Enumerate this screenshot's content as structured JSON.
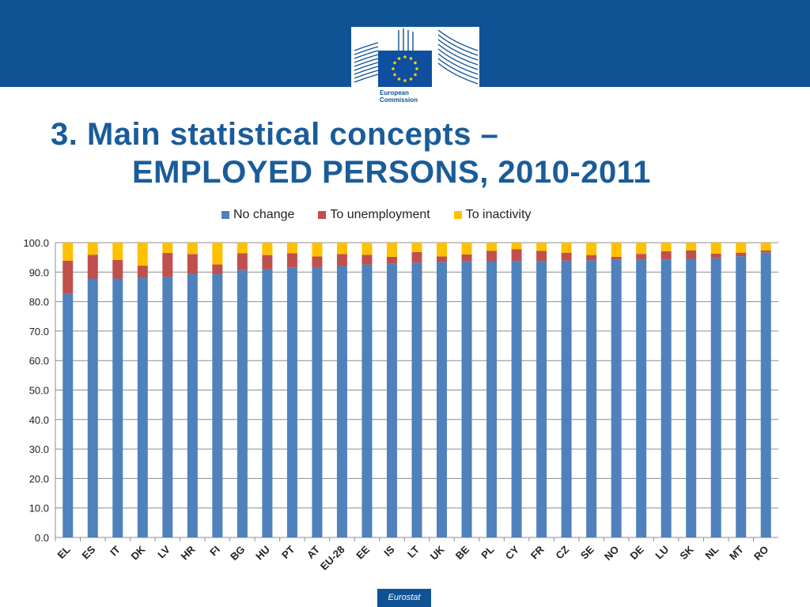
{
  "header": {
    "logo_line1": "European",
    "logo_line2": "Commission",
    "logo_icon": "eu-flag-icon"
  },
  "title": {
    "line1": "3. Main statistical concepts –",
    "line2": "EMPLOYED PERSONS, 2010-2011"
  },
  "footer": {
    "label": "Eurostat"
  },
  "colors": {
    "header_bg": "#0f5394",
    "no_change": "#4f81bd",
    "to_unemployment": "#c0504d",
    "to_inactivity": "#ffc000"
  },
  "chart_data": {
    "type": "bar",
    "stacked": true,
    "categories": [
      "EL",
      "ES",
      "IT",
      "DK",
      "LV",
      "HR",
      "FI",
      "BG",
      "HU",
      "PT",
      "AT",
      "EU-28",
      "EE",
      "IS",
      "LT",
      "UK",
      "BE",
      "PL",
      "CY",
      "FR",
      "CZ",
      "SE",
      "NO",
      "DE",
      "LU",
      "SK",
      "NL",
      "MT",
      "RO"
    ],
    "series": [
      {
        "name": "No change",
        "values": [
          82.8,
          87.8,
          87.8,
          88.2,
          88.3,
          89.4,
          89.4,
          90.7,
          91.0,
          91.6,
          91.7,
          92.1,
          92.6,
          92.8,
          93.2,
          93.4,
          93.6,
          93.7,
          93.8,
          93.8,
          93.9,
          94.0,
          94.2,
          94.2,
          94.3,
          94.5,
          94.7,
          95.4,
          96.6
        ]
      },
      {
        "name": "To unemployment",
        "values": [
          11.1,
          8.1,
          6.3,
          4.0,
          8.2,
          6.7,
          3.2,
          5.7,
          4.8,
          4.8,
          3.6,
          4.0,
          3.3,
          2.4,
          3.6,
          1.9,
          2.4,
          3.5,
          4.0,
          3.4,
          2.7,
          1.8,
          1.0,
          2.0,
          2.8,
          2.9,
          1.6,
          1.2,
          0.8
        ]
      },
      {
        "name": "To inactivity",
        "values": [
          6.1,
          4.1,
          5.9,
          7.8,
          3.5,
          3.9,
          7.4,
          3.6,
          4.2,
          3.6,
          4.7,
          3.9,
          4.1,
          4.8,
          3.2,
          4.7,
          4.0,
          2.8,
          2.2,
          2.8,
          3.4,
          4.2,
          4.8,
          3.8,
          2.9,
          2.6,
          3.7,
          3.4,
          2.6
        ]
      }
    ],
    "ylim": [
      0,
      100
    ],
    "yticks": [
      "0.0",
      "10.0",
      "20.0",
      "30.0",
      "40.0",
      "50.0",
      "60.0",
      "70.0",
      "80.0",
      "90.0",
      "100.0"
    ],
    "legend_position": "top",
    "grid": true
  }
}
